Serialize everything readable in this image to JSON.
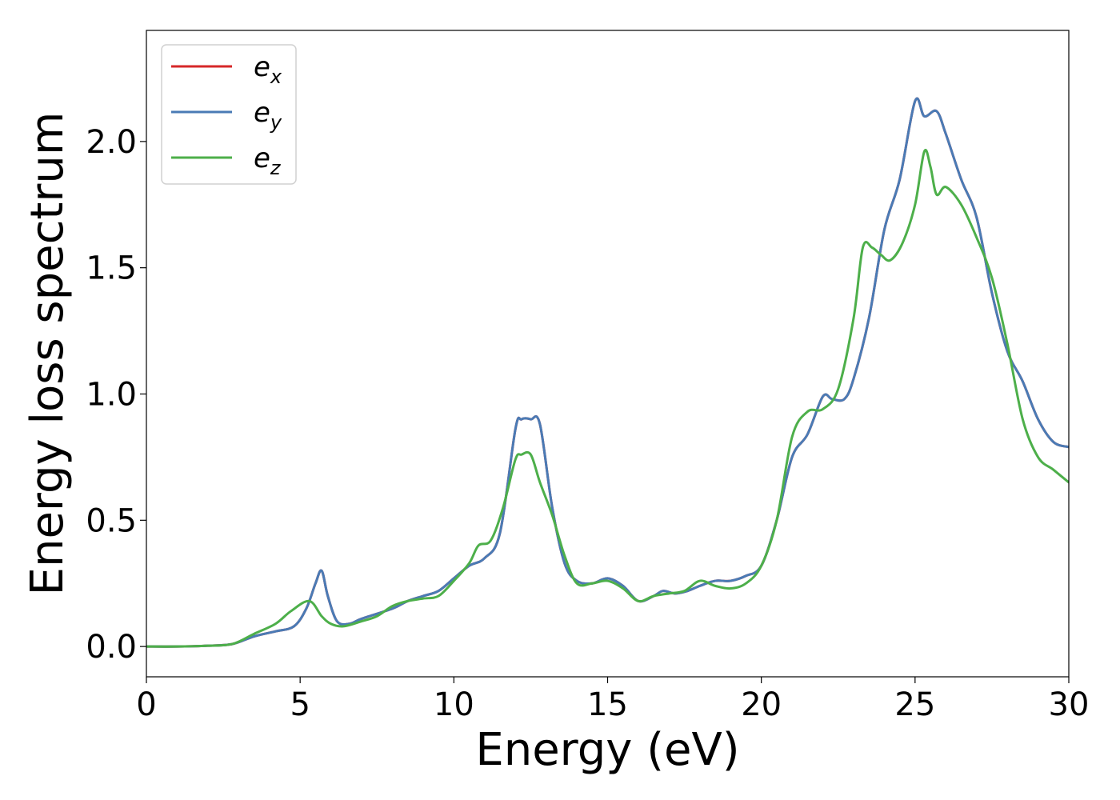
{
  "chart_data": {
    "type": "line",
    "title": "",
    "xlabel": "Energy (eV)",
    "ylabel": "Energy loss spectrum",
    "xlim": [
      0,
      30
    ],
    "ylim": [
      -0.12,
      2.44
    ],
    "xticks": [
      0,
      5,
      10,
      15,
      20,
      25,
      30
    ],
    "xtick_labels": [
      "0",
      "5",
      "10",
      "15",
      "20",
      "25",
      "30"
    ],
    "yticks": [
      0.0,
      0.5,
      1.0,
      1.5,
      2.0
    ],
    "ytick_labels": [
      "0.0",
      "0.5",
      "1.0",
      "1.5",
      "2.0"
    ],
    "grid": false,
    "legend_position": "top-left",
    "series": [
      {
        "name": "e_x",
        "legend_base": "e",
        "legend_sub": "x",
        "color": "#d62728",
        "x": [
          0,
          1,
          2,
          2.8,
          3.5,
          4.2,
          4.8,
          5.2,
          5.5,
          5.7,
          5.9,
          6.2,
          6.6,
          7,
          8,
          8.5,
          9,
          9.5,
          10,
          10.5,
          11,
          11.5,
          12,
          12.2,
          12.5,
          12.8,
          13.2,
          13.6,
          14,
          14.5,
          15,
          15.5,
          16,
          16.5,
          16.8,
          17.2,
          17.6,
          18,
          18.5,
          19,
          19.5,
          20,
          20.5,
          21,
          21.5,
          22,
          22.3,
          22.7,
          23,
          23.5,
          24,
          24.5,
          25,
          25.3,
          25.7,
          26,
          26.5,
          27,
          27.5,
          28,
          28.5,
          29,
          29.5,
          30
        ],
        "y": [
          0,
          0,
          0.003,
          0.01,
          0.04,
          0.06,
          0.08,
          0.15,
          0.25,
          0.3,
          0.2,
          0.1,
          0.09,
          0.11,
          0.15,
          0.18,
          0.2,
          0.22,
          0.27,
          0.32,
          0.35,
          0.45,
          0.86,
          0.9,
          0.9,
          0.88,
          0.55,
          0.33,
          0.26,
          0.25,
          0.27,
          0.24,
          0.18,
          0.2,
          0.22,
          0.21,
          0.22,
          0.24,
          0.26,
          0.26,
          0.28,
          0.32,
          0.5,
          0.75,
          0.84,
          0.99,
          0.98,
          0.98,
          1.06,
          1.3,
          1.65,
          1.85,
          2.16,
          2.1,
          2.12,
          2.03,
          1.85,
          1.7,
          1.4,
          1.17,
          1.05,
          0.9,
          0.81,
          0.79
        ]
      },
      {
        "name": "e_y",
        "legend_base": "e",
        "legend_sub": "y",
        "color": "#4a7bb5",
        "x": [
          0,
          1,
          2,
          2.8,
          3.5,
          4.2,
          4.8,
          5.2,
          5.5,
          5.7,
          5.9,
          6.2,
          6.6,
          7,
          8,
          8.5,
          9,
          9.5,
          10,
          10.5,
          11,
          11.5,
          12,
          12.2,
          12.5,
          12.8,
          13.2,
          13.6,
          14,
          14.5,
          15,
          15.5,
          16,
          16.5,
          16.8,
          17.2,
          17.6,
          18,
          18.5,
          19,
          19.5,
          20,
          20.5,
          21,
          21.5,
          22,
          22.3,
          22.7,
          23,
          23.5,
          24,
          24.5,
          25,
          25.3,
          25.7,
          26,
          26.5,
          27,
          27.5,
          28,
          28.5,
          29,
          29.5,
          30
        ],
        "y": [
          0,
          0,
          0.003,
          0.01,
          0.04,
          0.06,
          0.08,
          0.15,
          0.25,
          0.3,
          0.2,
          0.1,
          0.09,
          0.11,
          0.15,
          0.18,
          0.2,
          0.22,
          0.27,
          0.32,
          0.35,
          0.45,
          0.86,
          0.9,
          0.9,
          0.88,
          0.55,
          0.33,
          0.26,
          0.25,
          0.27,
          0.24,
          0.18,
          0.2,
          0.22,
          0.21,
          0.22,
          0.24,
          0.26,
          0.26,
          0.28,
          0.32,
          0.5,
          0.75,
          0.84,
          0.99,
          0.98,
          0.98,
          1.06,
          1.3,
          1.65,
          1.85,
          2.16,
          2.1,
          2.12,
          2.03,
          1.85,
          1.7,
          1.4,
          1.17,
          1.05,
          0.9,
          0.81,
          0.79
        ]
      },
      {
        "name": "e_z",
        "legend_base": "e",
        "legend_sub": "z",
        "color": "#4daf4a",
        "x": [
          0,
          1,
          2,
          2.8,
          3.5,
          4.2,
          4.7,
          5.3,
          5.7,
          6,
          6.4,
          7,
          7.5,
          8,
          8.5,
          9,
          9.5,
          10,
          10.5,
          10.8,
          11.2,
          11.6,
          12,
          12.2,
          12.5,
          12.8,
          13.2,
          13.6,
          14,
          14.5,
          15,
          15.5,
          16,
          16.5,
          17,
          17.5,
          18,
          18.5,
          19,
          19.5,
          20,
          20.5,
          21,
          21.5,
          22,
          22.5,
          23,
          23.3,
          23.6,
          23.9,
          24.2,
          24.6,
          25,
          25.3,
          25.5,
          25.7,
          26,
          26.5,
          27,
          27.5,
          28,
          28.5,
          29,
          29.5,
          30
        ],
        "y": [
          0,
          0,
          0.003,
          0.01,
          0.05,
          0.09,
          0.14,
          0.18,
          0.12,
          0.09,
          0.08,
          0.1,
          0.12,
          0.16,
          0.18,
          0.19,
          0.2,
          0.26,
          0.33,
          0.4,
          0.42,
          0.55,
          0.74,
          0.76,
          0.76,
          0.65,
          0.52,
          0.36,
          0.25,
          0.25,
          0.26,
          0.23,
          0.18,
          0.2,
          0.21,
          0.22,
          0.26,
          0.24,
          0.23,
          0.25,
          0.32,
          0.5,
          0.83,
          0.93,
          0.94,
          1.02,
          1.3,
          1.58,
          1.58,
          1.55,
          1.53,
          1.6,
          1.75,
          1.96,
          1.9,
          1.79,
          1.82,
          1.75,
          1.62,
          1.46,
          1.2,
          0.9,
          0.75,
          0.7,
          0.65
        ]
      }
    ]
  }
}
